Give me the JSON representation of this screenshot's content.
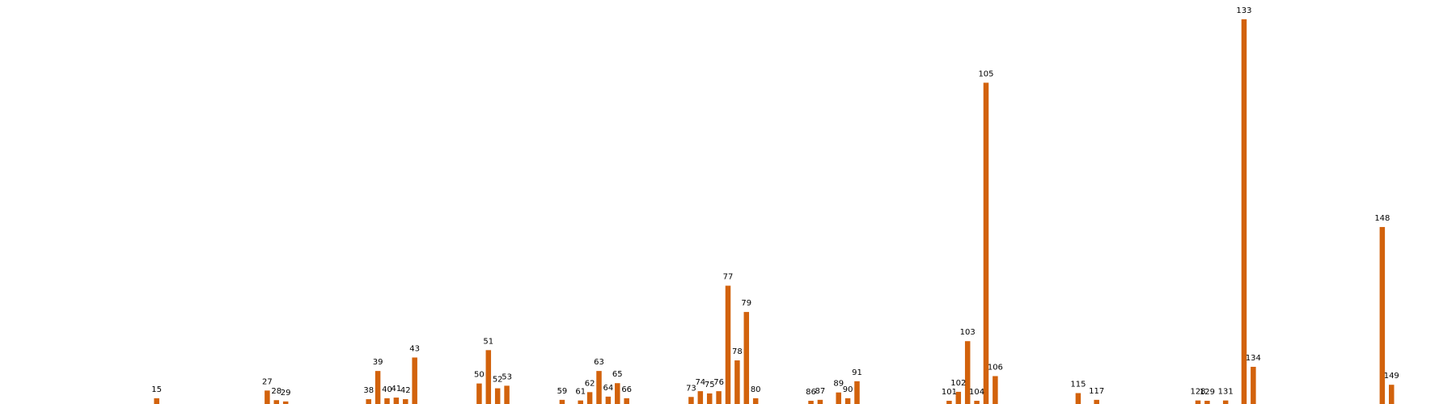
{
  "chart_data": {
    "type": "bar",
    "colors": {
      "bar": "#d2620c"
    },
    "ylim": [
      0,
      1.26
    ],
    "x_range": [
      -2,
      156
    ],
    "grid": false,
    "axes_visible": false,
    "title": "",
    "xlabel": "",
    "ylabel": "",
    "categories": [
      "15",
      "27",
      "28",
      "29",
      "38",
      "39",
      "40",
      "41",
      "42",
      "43",
      "50",
      "51",
      "52",
      "53",
      "59",
      "61",
      "62",
      "63",
      "64",
      "65",
      "66",
      "73",
      "74",
      "75",
      "76",
      "77",
      "78",
      "79",
      "80",
      "86",
      "87",
      "89",
      "90",
      "91",
      "101",
      "102",
      "103",
      "104",
      "105",
      "106",
      "115",
      "117",
      "128",
      "129",
      "131",
      "133",
      "134",
      "148",
      "149"
    ],
    "values": [
      0.018,
      0.042,
      0.012,
      0.008,
      0.015,
      0.103,
      0.018,
      0.02,
      0.015,
      0.145,
      0.064,
      0.168,
      0.049,
      0.057,
      0.013,
      0.011,
      0.037,
      0.103,
      0.023,
      0.065,
      0.018,
      0.022,
      0.04,
      0.033,
      0.04,
      0.369,
      0.136,
      0.287,
      0.018,
      0.01,
      0.013,
      0.036,
      0.018,
      0.071,
      0.01,
      0.038,
      0.196,
      0.01,
      1.002,
      0.087,
      0.034,
      0.013,
      0.011,
      0.01,
      0.011,
      1.2,
      0.116,
      0.552,
      0.06
    ]
  }
}
